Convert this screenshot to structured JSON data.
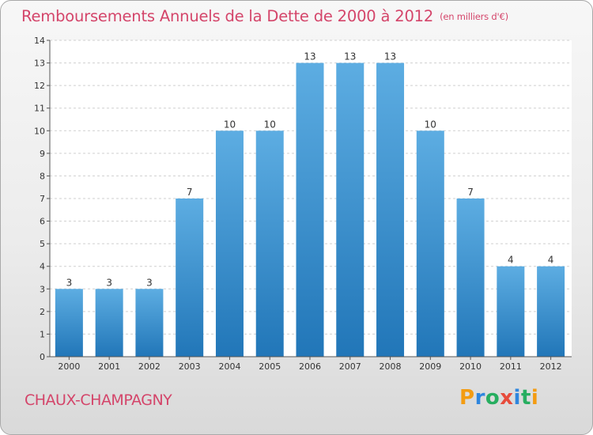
{
  "title": "Remboursements Annuels de la Dette de 2000 à 2012",
  "unit_note": "(en milliers d'€)",
  "commune": "CHAUX-CHAMPAGNY",
  "logo": {
    "text": "Proxiti",
    "letters": [
      "P",
      "r",
      "o",
      "x",
      "i",
      "t",
      "i"
    ],
    "colors": [
      "#f39c12",
      "#2e86de",
      "#27ae60",
      "#e74c3c",
      "#2e86de",
      "#27ae60",
      "#f39c12"
    ]
  },
  "colors": {
    "bar_top": "#5dade2",
    "bar_bottom": "#2176b8",
    "title": "#d4456a",
    "grid": "#cfcfcf"
  },
  "chart_data": {
    "type": "bar",
    "categories": [
      "2000",
      "2001",
      "2002",
      "2003",
      "2004",
      "2005",
      "2006",
      "2007",
      "2008",
      "2009",
      "2010",
      "2011",
      "2012"
    ],
    "values": [
      3,
      3,
      3,
      7,
      10,
      10,
      13,
      13,
      13,
      10,
      7,
      4,
      4
    ],
    "data_labels": [
      "3",
      "3",
      "3",
      "7",
      "10",
      "10",
      "13",
      "13",
      "13",
      "10",
      "7",
      "4",
      "4"
    ],
    "y_ticks": [
      "0",
      "1",
      "2",
      "3",
      "4",
      "5",
      "6",
      "7",
      "8",
      "9",
      "10",
      "11",
      "12",
      "13",
      "14"
    ],
    "ylim": [
      0,
      14
    ],
    "grid": true
  }
}
